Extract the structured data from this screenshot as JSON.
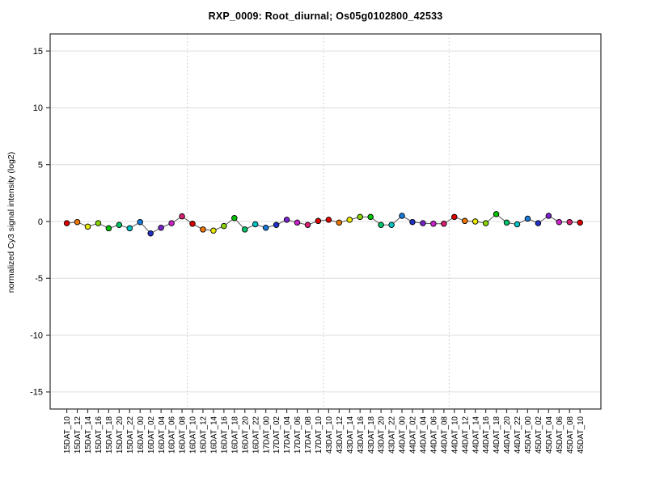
{
  "title": "RXP_0009: Root_diurnal; Os05g0102800_42533",
  "chart_data": {
    "type": "line",
    "title": "RXP_0009: Root_diurnal; Os05g0102800_42533",
    "xlabel": "",
    "ylabel": "normalized Cy3 signal intensity (log2)",
    "ylim": [
      -16.5,
      16.5
    ],
    "yticks": [
      -15,
      -10,
      -5,
      0,
      5,
      10,
      15
    ],
    "grid": "horizontal solid lines at yticks; vertical dotted separators between 24h blocks; legend none",
    "separators_after_index": [
      11,
      24,
      36
    ],
    "categories": [
      "15DAT_10",
      "15DAT_12",
      "15DAT_14",
      "15DAT_16",
      "15DAT_18",
      "15DAT_20",
      "15DAT_22",
      "16DAT_00",
      "16DAT_02",
      "16DAT_04",
      "16DAT_06",
      "16DAT_08",
      "16DAT_10",
      "16DAT_12",
      "16DAT_14",
      "16DAT_16",
      "16DAT_18",
      "16DAT_20",
      "16DAT_22",
      "17DAT_00",
      "17DAT_02",
      "17DAT_04",
      "17DAT_06",
      "17DAT_08",
      "17DAT_10",
      "43DAT_10",
      "43DAT_12",
      "43DAT_14",
      "43DAT_16",
      "43DAT_18",
      "43DAT_20",
      "43DAT_22",
      "44DAT_00",
      "44DAT_02",
      "44DAT_04",
      "44DAT_06",
      "44DAT_08",
      "44DAT_10",
      "44DAT_12",
      "44DAT_14",
      "44DAT_16",
      "44DAT_18",
      "44DAT_20",
      "44DAT_22",
      "45DAT_00",
      "45DAT_02",
      "45DAT_04",
      "45DAT_06",
      "45DAT_08",
      "45DAT_10"
    ],
    "values": [
      -0.15,
      -0.05,
      -0.45,
      -0.15,
      -0.6,
      -0.3,
      -0.6,
      -0.05,
      -1.05,
      -0.55,
      -0.15,
      0.45,
      -0.2,
      -0.7,
      -0.8,
      -0.4,
      0.3,
      -0.7,
      -0.25,
      -0.55,
      -0.3,
      0.15,
      -0.1,
      -0.3,
      0.05,
      0.15,
      -0.1,
      0.15,
      0.4,
      0.4,
      -0.3,
      -0.3,
      0.5,
      -0.05,
      -0.15,
      -0.2,
      -0.2,
      0.4,
      0.05,
      0.0,
      -0.15,
      0.65,
      -0.1,
      -0.25,
      0.25,
      -0.15,
      0.5,
      -0.05,
      -0.05,
      -0.1
    ],
    "point_palette_by_hour": {
      "10": "#e00000",
      "12": "#ee7700",
      "14": "#e8e800",
      "16": "#88d400",
      "18": "#00c400",
      "20": "#00c46a",
      "22": "#00c4c4",
      "00": "#1a7ad9",
      "02": "#2230c8",
      "04": "#7a22cc",
      "06": "#cc22cc",
      "08": "#d92070"
    },
    "line_color": "#555555",
    "point_border_color": "#000000",
    "gridline_color": "#dcdcdc",
    "separator_color": "#c8c8c8",
    "axis_color": "#3c3c3c"
  }
}
